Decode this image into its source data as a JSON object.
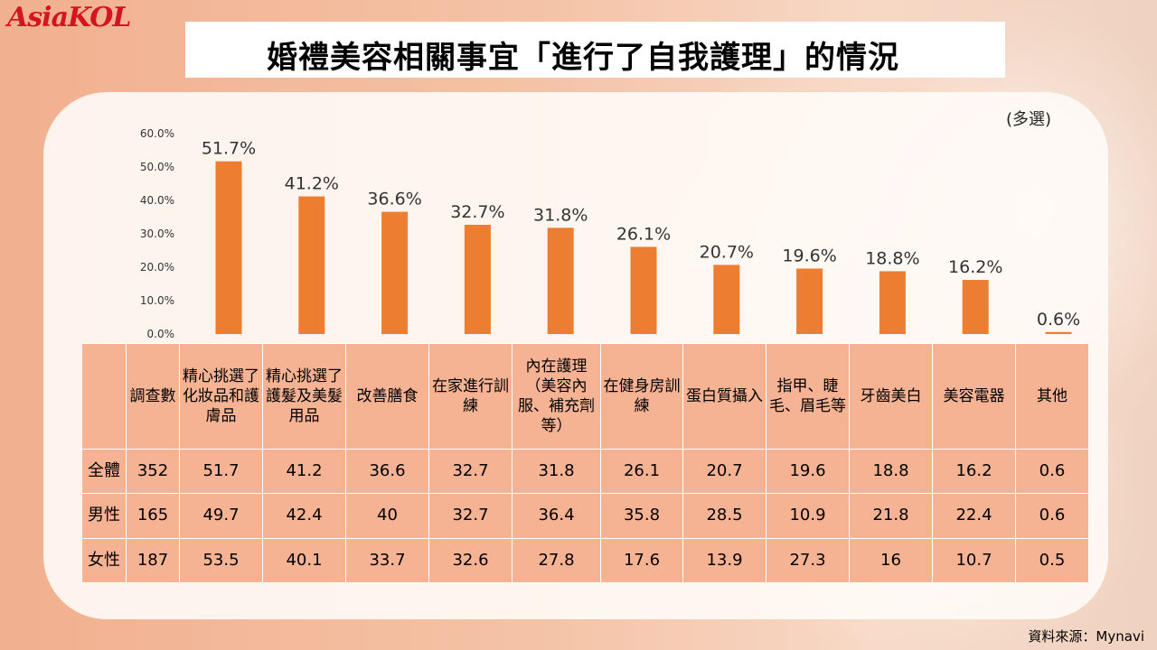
{
  "logo": "AsiaKOL",
  "title": "婚禮美容相關事宜「進行了自我護理」的情況",
  "note": "(多選)",
  "source": "資料來源：Mynavi",
  "colors": {
    "bar": "#ed7d31",
    "table_cell": "#f6b393",
    "logo": "#d4151f"
  },
  "chart_data": {
    "type": "bar",
    "categories": [
      "精心挑選了化妝品和護膚品",
      "精心挑選了護髮及美髮用品",
      "改善膳食",
      "在家進行訓練",
      "內在護理（美容內服、補充劑等）",
      "在健身房訓練",
      "蛋白質攝入",
      "指甲、睫毛、眉毛等",
      "牙齒美白",
      "美容電器",
      "其他"
    ],
    "values": [
      51.7,
      41.2,
      36.6,
      32.7,
      31.8,
      26.1,
      20.7,
      19.6,
      18.8,
      16.2,
      0.6
    ],
    "value_labels": [
      "51.7%",
      "41.2%",
      "36.6%",
      "32.7%",
      "31.8%",
      "26.1%",
      "20.7%",
      "19.6%",
      "18.8%",
      "16.2%",
      "0.6%"
    ],
    "y_ticks": [
      "0.0%",
      "10.0%",
      "20.0%",
      "30.0%",
      "40.0%",
      "50.0%",
      "60.0%"
    ],
    "ylim": [
      0,
      60
    ],
    "grid": false
  },
  "table": {
    "header": [
      "",
      "調查數",
      "精心挑選了化妝品和護膚品",
      "精心挑選了護髮及美髮用品",
      "改善膳食",
      "在家進行訓練",
      "內在護理（美容內服、補充劑等）",
      "在健身房訓練",
      "蛋白質攝入",
      "指甲、睫毛、眉毛等",
      "牙齒美白",
      "美容電器",
      "其他"
    ],
    "rows": [
      [
        "全體",
        "352",
        "51.7",
        "41.2",
        "36.6",
        "32.7",
        "31.8",
        "26.1",
        "20.7",
        "19.6",
        "18.8",
        "16.2",
        "0.6"
      ],
      [
        "男性",
        "165",
        "49.7",
        "42.4",
        "40",
        "32.7",
        "36.4",
        "35.8",
        "28.5",
        "10.9",
        "21.8",
        "22.4",
        "0.6"
      ],
      [
        "女性",
        "187",
        "53.5",
        "40.1",
        "33.7",
        "32.6",
        "27.8",
        "17.6",
        "13.9",
        "27.3",
        "16",
        "10.7",
        "0.5"
      ]
    ]
  }
}
